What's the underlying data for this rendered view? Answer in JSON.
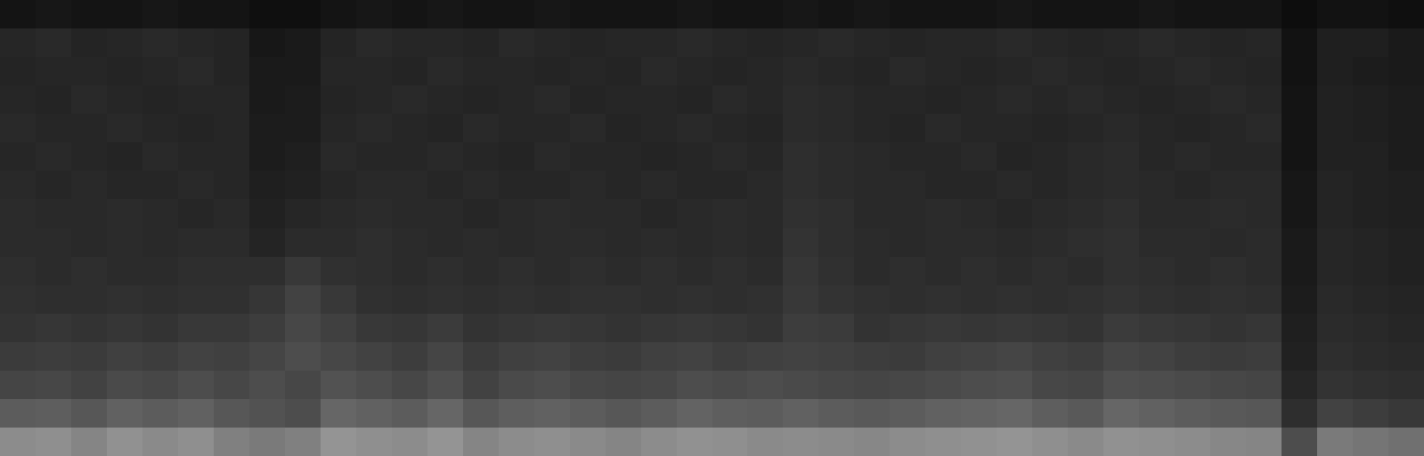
{
  "chart_data": {
    "type": "heatmap",
    "tick_labels": false,
    "clim": [
      0,
      100
    ],
    "cells": [
      [
        8,
        9,
        8,
        8,
        9,
        8,
        8,
        6,
        6,
        8,
        9,
        8,
        9,
        8,
        8,
        9,
        8,
        8,
        8,
        9,
        8,
        8,
        9,
        8,
        9,
        8,
        8,
        8,
        9,
        8,
        8,
        8,
        9,
        8,
        8,
        8,
        5,
        7,
        7,
        6
      ],
      [
        15,
        16,
        14,
        15,
        16,
        15,
        14,
        9,
        10,
        14,
        16,
        15,
        15,
        14,
        16,
        15,
        14,
        15,
        15,
        16,
        15,
        14,
        15,
        16,
        15,
        14,
        15,
        15,
        16,
        15,
        14,
        15,
        16,
        15,
        14,
        15,
        7,
        12,
        12,
        10
      ],
      [
        14,
        15,
        15,
        14,
        15,
        16,
        14,
        10,
        10,
        15,
        15,
        14,
        16,
        15,
        15,
        14,
        15,
        14,
        16,
        15,
        14,
        15,
        16,
        15,
        14,
        16,
        15,
        14,
        15,
        16,
        15,
        14,
        15,
        16,
        15,
        14,
        7,
        12,
        11,
        10
      ],
      [
        15,
        14,
        16,
        15,
        14,
        15,
        15,
        10,
        11,
        14,
        15,
        16,
        15,
        14,
        15,
        16,
        14,
        15,
        15,
        14,
        16,
        15,
        17,
        16,
        15,
        15,
        14,
        15,
        16,
        15,
        16,
        15,
        14,
        15,
        16,
        15,
        8,
        13,
        12,
        11
      ],
      [
        16,
        15,
        15,
        16,
        15,
        14,
        15,
        11,
        11,
        15,
        16,
        15,
        14,
        16,
        15,
        15,
        16,
        14,
        15,
        16,
        15,
        14,
        17,
        16,
        15,
        14,
        16,
        15,
        15,
        14,
        15,
        16,
        15,
        14,
        15,
        16,
        8,
        13,
        12,
        11
      ],
      [
        15,
        16,
        15,
        14,
        16,
        15,
        15,
        11,
        12,
        16,
        15,
        15,
        16,
        15,
        14,
        16,
        15,
        15,
        14,
        15,
        16,
        15,
        18,
        17,
        16,
        15,
        15,
        16,
        14,
        15,
        16,
        17,
        15,
        16,
        15,
        15,
        8,
        13,
        13,
        11
      ],
      [
        16,
        15,
        16,
        15,
        15,
        16,
        15,
        12,
        13,
        15,
        16,
        16,
        15,
        16,
        15,
        15,
        16,
        15,
        16,
        15,
        15,
        16,
        18,
        17,
        16,
        16,
        15,
        15,
        16,
        15,
        16,
        17,
        16,
        15,
        16,
        16,
        9,
        14,
        13,
        12
      ],
      [
        17,
        16,
        16,
        17,
        16,
        15,
        16,
        13,
        15,
        16,
        17,
        16,
        16,
        15,
        16,
        17,
        16,
        16,
        15,
        16,
        17,
        16,
        19,
        18,
        16,
        16,
        17,
        16,
        15,
        16,
        17,
        18,
        16,
        16,
        17,
        16,
        9,
        14,
        13,
        12
      ],
      [
        17,
        17,
        16,
        17,
        16,
        17,
        17,
        14,
        17,
        17,
        18,
        17,
        16,
        17,
        16,
        17,
        17,
        16,
        17,
        16,
        17,
        16,
        20,
        18,
        17,
        16,
        17,
        17,
        16,
        17,
        18,
        19,
        17,
        17,
        16,
        17,
        10,
        15,
        14,
        13
      ],
      [
        18,
        17,
        18,
        17,
        17,
        18,
        18,
        18,
        22,
        19,
        18,
        17,
        18,
        17,
        18,
        17,
        18,
        17,
        18,
        17,
        18,
        17,
        21,
        19,
        17,
        18,
        17,
        18,
        17,
        18,
        17,
        19,
        18,
        17,
        18,
        17,
        10,
        15,
        14,
        13
      ],
      [
        19,
        18,
        18,
        19,
        18,
        19,
        19,
        21,
        26,
        22,
        19,
        18,
        19,
        18,
        19,
        18,
        19,
        19,
        18,
        19,
        18,
        19,
        22,
        20,
        19,
        18,
        19,
        18,
        19,
        18,
        19,
        20,
        19,
        18,
        19,
        18,
        11,
        16,
        15,
        14
      ],
      [
        20,
        21,
        20,
        21,
        20,
        22,
        22,
        24,
        28,
        25,
        22,
        21,
        23,
        20,
        21,
        22,
        21,
        20,
        21,
        22,
        21,
        20,
        24,
        23,
        20,
        21,
        22,
        21,
        22,
        21,
        20,
        23,
        22,
        21,
        20,
        21,
        12,
        17,
        16,
        15
      ],
      [
        23,
        24,
        23,
        25,
        24,
        26,
        25,
        27,
        30,
        28,
        26,
        24,
        27,
        23,
        25,
        26,
        24,
        23,
        25,
        26,
        24,
        25,
        26,
        25,
        24,
        23,
        25,
        26,
        27,
        25,
        24,
        27,
        26,
        24,
        23,
        24,
        13,
        18,
        17,
        16
      ],
      [
        27,
        28,
        26,
        29,
        28,
        30,
        28,
        30,
        28,
        32,
        30,
        28,
        31,
        26,
        29,
        30,
        28,
        27,
        28,
        30,
        29,
        30,
        29,
        28,
        27,
        28,
        29,
        30,
        31,
        28,
        27,
        31,
        30,
        29,
        28,
        27,
        15,
        20,
        19,
        18
      ],
      [
        36,
        37,
        34,
        38,
        36,
        38,
        34,
        32,
        30,
        40,
        38,
        36,
        40,
        34,
        37,
        38,
        36,
        34,
        36,
        39,
        37,
        36,
        38,
        36,
        35,
        36,
        38,
        39,
        40,
        37,
        35,
        40,
        38,
        36,
        35,
        34,
        18,
        26,
        24,
        22
      ],
      [
        55,
        56,
        52,
        57,
        54,
        56,
        50,
        48,
        50,
        58,
        56,
        55,
        58,
        52,
        55,
        56,
        54,
        52,
        55,
        57,
        56,
        54,
        55,
        54,
        53,
        55,
        56,
        57,
        58,
        56,
        54,
        57,
        56,
        55,
        53,
        52,
        30,
        48,
        46,
        44
      ]
    ]
  }
}
